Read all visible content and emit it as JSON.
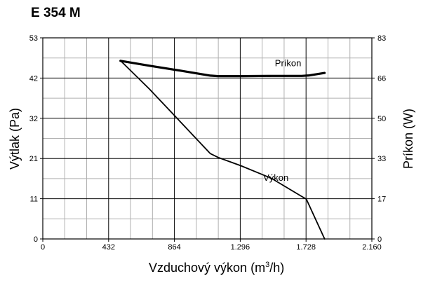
{
  "header": {
    "title": "E 354 M"
  },
  "chart_data": {
    "type": "line",
    "title": "E 354 M",
    "xlabel": "Vzduchový výkon (m3/h)",
    "xlabel_parts": [
      "Vzduchový výkon (m",
      "3",
      "/h)"
    ],
    "ylabel_left": "Výtlak (Pa)",
    "ylabel_right": "Príkon (W)",
    "x_ticks": [
      "0",
      "432",
      "864",
      "1.296",
      "1.728",
      "2.160"
    ],
    "y_left_ticks": [
      "0",
      "11",
      "21",
      "32",
      "42",
      "53"
    ],
    "y_right_ticks": [
      "0",
      "17",
      "33",
      "50",
      "66",
      "83"
    ],
    "xlim": [
      0,
      2160
    ],
    "ylim_left": [
      0,
      53
    ],
    "ylim_right": [
      0,
      83
    ],
    "grid": true,
    "series": [
      {
        "name": "Výkon",
        "axis": "left",
        "x": [
          510,
          700,
          900,
          1100,
          1150,
          1300,
          1500,
          1700,
          1730,
          1850
        ],
        "y": [
          47,
          39.5,
          31,
          22.5,
          21.5,
          19.3,
          16,
          11.2,
          10.5,
          0
        ]
      },
      {
        "name": "Príkon",
        "axis": "right",
        "x": [
          510,
          700,
          900,
          1100,
          1150,
          1300,
          1500,
          1700,
          1750,
          1850
        ],
        "y": [
          73.5,
          71.5,
          69.5,
          67.4,
          67.2,
          67.2,
          67.3,
          67.3,
          67.5,
          68.5
        ]
      }
    ],
    "colors": {
      "line": "#000000",
      "grid": "#000000",
      "minor_grid": "#b0b0b0",
      "background": "#ffffff"
    }
  }
}
